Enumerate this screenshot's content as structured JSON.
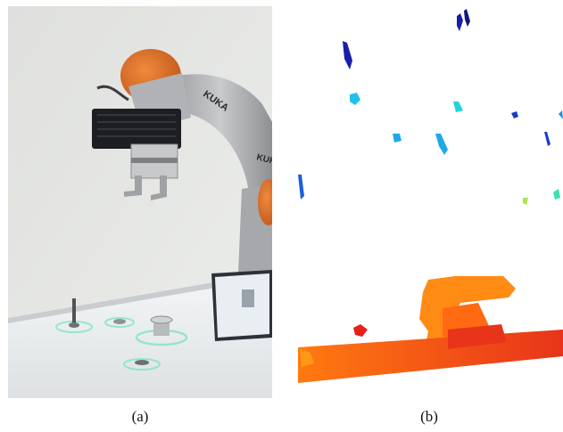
{
  "figure": {
    "panel_a": {
      "caption": "(a)",
      "arm_brand_text": "KUKA"
    },
    "panel_b": {
      "caption": "(b)"
    }
  },
  "colors": {
    "wall": "#e6e7e4",
    "table": "#eef1f2",
    "arm_body": "#b5b7b9",
    "arm_orange": "#e0702a",
    "gripper_dark": "#1c1e21",
    "ring_glow": "#7fe3c4",
    "depth_far": "#1a1fa8",
    "depth_mid": "#1fc1e8",
    "depth_near": "#ff7a10",
    "depth_closest": "#e8201a"
  }
}
